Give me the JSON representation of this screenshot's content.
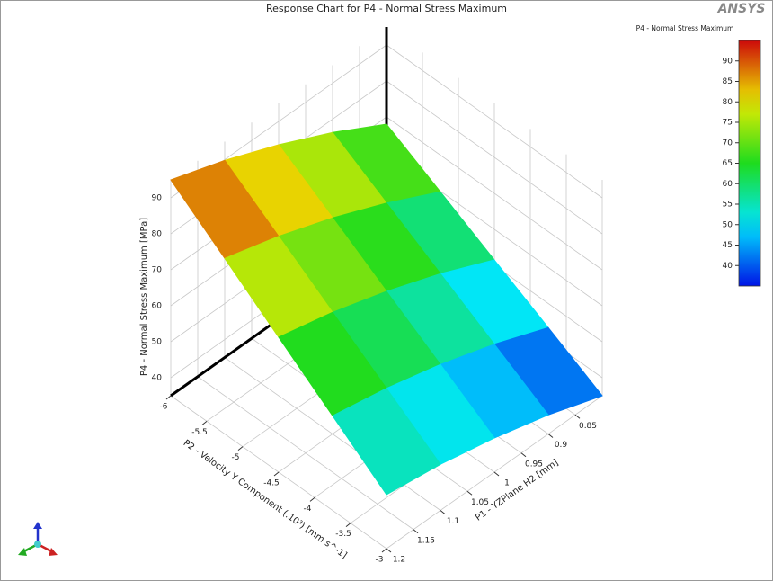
{
  "logo": "ANSYS",
  "chart_data": {
    "type": "surface",
    "title": "Response Chart for P4 - Normal Stress Maximum",
    "z_label": "P4 - Normal Stress Maximum  [MPa]",
    "x_label": "P2 - Velocity Y Component  (.10³)  [mm s^-1]",
    "y_label": "P1 - YZPlane H2  [mm]",
    "colorbar_title": "P4 - Normal Stress Maximum",
    "x": [
      -6,
      -5.25,
      -4.5,
      -3.75,
      -3
    ],
    "y": [
      0.8,
      0.9,
      1.0,
      1.1,
      1.2
    ],
    "values": [
      [
        68,
        76.3,
        83.5,
        89.8,
        95
      ],
      [
        59.8,
        67.3,
        73.8,
        79.3,
        83.8
      ],
      [
        51.5,
        58.3,
        64,
        68.8,
        72.5
      ],
      [
        43.3,
        49.3,
        54.3,
        58.3,
        61.3
      ],
      [
        35,
        40.3,
        44.5,
        47.8,
        50
      ]
    ],
    "xlim": [
      -6,
      -3
    ],
    "ylim": [
      0.8,
      1.2
    ],
    "zlim": [
      35,
      95
    ],
    "xticks": [
      -6,
      -5.5,
      -5,
      -4.5,
      -4,
      -3.5,
      -3
    ],
    "yticks": [
      0.85,
      0.9,
      0.95,
      1,
      1.05,
      1.1,
      1.15,
      1.2
    ],
    "zticks": [
      40,
      50,
      60,
      70,
      80,
      90
    ],
    "clim": [
      35,
      95
    ],
    "colorbar_ticks": [
      40,
      45,
      50,
      55,
      60,
      65,
      70,
      75,
      80,
      85,
      90
    ],
    "grid": true
  }
}
